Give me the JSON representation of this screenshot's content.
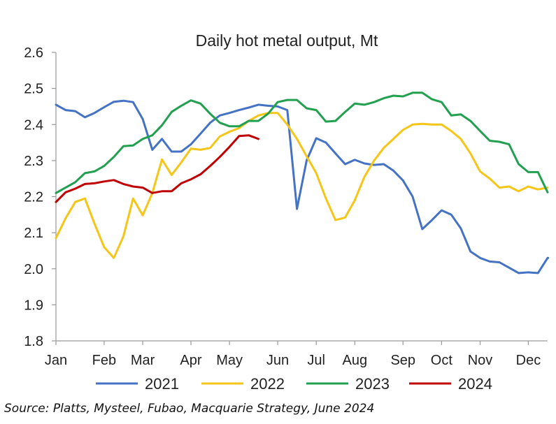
{
  "chart_data": {
    "type": "line",
    "title": "Daily hot metal output, Mt",
    "xlabel": "",
    "ylabel": "",
    "ylim": [
      1.8,
      2.6
    ],
    "xlim": [
      1,
      52
    ],
    "yticks": [
      "1.8",
      "1.9",
      "2.0",
      "2.1",
      "2.2",
      "2.3",
      "2.4",
      "2.5",
      "2.6"
    ],
    "xticks": [
      {
        "label": "Jan",
        "week": 1
      },
      {
        "label": "Feb",
        "week": 6
      },
      {
        "label": "Mar",
        "week": 10
      },
      {
        "label": "Apr",
        "week": 15
      },
      {
        "label": "May",
        "week": 19
      },
      {
        "label": "Jun",
        "week": 24
      },
      {
        "label": "Jul",
        "week": 28
      },
      {
        "label": "Aug",
        "week": 32
      },
      {
        "label": "Sep",
        "week": 37
      },
      {
        "label": "Oct",
        "week": 41
      },
      {
        "label": "Nov",
        "week": 45
      },
      {
        "label": "Dec",
        "week": 50
      }
    ],
    "grid": false,
    "legend_position": "bottom",
    "series": [
      {
        "name": "2021",
        "color": "#4472C4",
        "x": [
          1,
          2,
          3,
          4,
          5,
          6,
          7,
          8,
          9,
          10,
          11,
          12,
          13,
          14,
          15,
          16,
          17,
          18,
          19,
          20,
          21,
          22,
          23,
          24,
          25,
          26,
          27,
          28,
          29,
          30,
          31,
          32,
          33,
          34,
          35,
          36,
          37,
          38,
          39,
          40,
          41,
          42,
          43,
          44,
          45,
          46,
          47,
          48,
          49,
          50,
          51,
          52,
          53
        ],
        "y": [
          2.455,
          2.44,
          2.437,
          2.42,
          2.432,
          2.448,
          2.463,
          2.466,
          2.462,
          2.415,
          2.33,
          2.36,
          2.325,
          2.325,
          2.345,
          2.375,
          2.405,
          2.425,
          2.432,
          2.44,
          2.447,
          2.455,
          2.452,
          2.45,
          2.44,
          2.166,
          2.3,
          2.362,
          2.35,
          2.32,
          2.29,
          2.302,
          2.292,
          2.288,
          2.29,
          2.272,
          2.245,
          2.2,
          2.11,
          2.135,
          2.162,
          2.15,
          2.112,
          2.048,
          2.03,
          2.02,
          2.018,
          2.003,
          1.988,
          1.99,
          1.988,
          2.03,
          2.03
        ]
      },
      {
        "name": "2022",
        "color": "#F5C518",
        "x": [
          1,
          2,
          3,
          4,
          5,
          6,
          7,
          8,
          9,
          10,
          11,
          12,
          13,
          14,
          15,
          16,
          17,
          18,
          19,
          20,
          21,
          22,
          23,
          24,
          25,
          26,
          27,
          28,
          29,
          30,
          31,
          32,
          33,
          34,
          35,
          36,
          37,
          38,
          39,
          40,
          41,
          42,
          43,
          44,
          45,
          46,
          47,
          48,
          49,
          50,
          51,
          52
        ],
        "y": [
          2.085,
          2.14,
          2.185,
          2.195,
          2.125,
          2.06,
          2.03,
          2.09,
          2.195,
          2.148,
          2.21,
          2.303,
          2.26,
          2.295,
          2.333,
          2.33,
          2.335,
          2.367,
          2.38,
          2.39,
          2.41,
          2.425,
          2.432,
          2.432,
          2.4,
          2.36,
          2.312,
          2.265,
          2.195,
          2.135,
          2.142,
          2.19,
          2.255,
          2.3,
          2.335,
          2.36,
          2.385,
          2.4,
          2.402,
          2.4,
          2.4,
          2.382,
          2.36,
          2.32,
          2.27,
          2.25,
          2.225,
          2.228,
          2.215,
          2.228,
          2.22,
          2.225
        ]
      },
      {
        "name": "2023",
        "color": "#21A04F",
        "x": [
          1,
          2,
          3,
          4,
          5,
          6,
          7,
          8,
          9,
          10,
          11,
          12,
          13,
          14,
          15,
          16,
          17,
          18,
          19,
          20,
          21,
          22,
          23,
          24,
          25,
          26,
          27,
          28,
          29,
          30,
          31,
          32,
          33,
          34,
          35,
          36,
          37,
          38,
          39,
          40,
          41,
          42,
          43,
          44,
          45,
          46,
          47,
          48,
          49,
          50,
          51,
          52
        ],
        "y": [
          2.21,
          2.225,
          2.24,
          2.265,
          2.27,
          2.285,
          2.31,
          2.34,
          2.342,
          2.36,
          2.37,
          2.398,
          2.435,
          2.452,
          2.467,
          2.458,
          2.43,
          2.405,
          2.395,
          2.395,
          2.41,
          2.41,
          2.43,
          2.462,
          2.468,
          2.468,
          2.445,
          2.44,
          2.408,
          2.41,
          2.435,
          2.458,
          2.455,
          2.462,
          2.473,
          2.48,
          2.478,
          2.488,
          2.488,
          2.47,
          2.462,
          2.425,
          2.428,
          2.41,
          2.382,
          2.355,
          2.352,
          2.345,
          2.29,
          2.268,
          2.268,
          2.212
        ]
      },
      {
        "name": "2024",
        "color": "#C00000",
        "x": [
          1,
          2,
          3,
          4,
          5,
          6,
          7,
          8,
          9,
          10,
          11,
          12,
          13,
          14,
          15,
          16,
          17,
          18,
          19,
          20,
          21,
          22
        ],
        "y": [
          2.185,
          2.212,
          2.222,
          2.235,
          2.237,
          2.242,
          2.246,
          2.235,
          2.228,
          2.225,
          2.21,
          2.215,
          2.215,
          2.237,
          2.248,
          2.262,
          2.285,
          2.31,
          2.338,
          2.368,
          2.37,
          2.36
        ]
      }
    ]
  },
  "source": "Source: Platts, Mysteel, Fubao, Macquarie Strategy, June 2024"
}
